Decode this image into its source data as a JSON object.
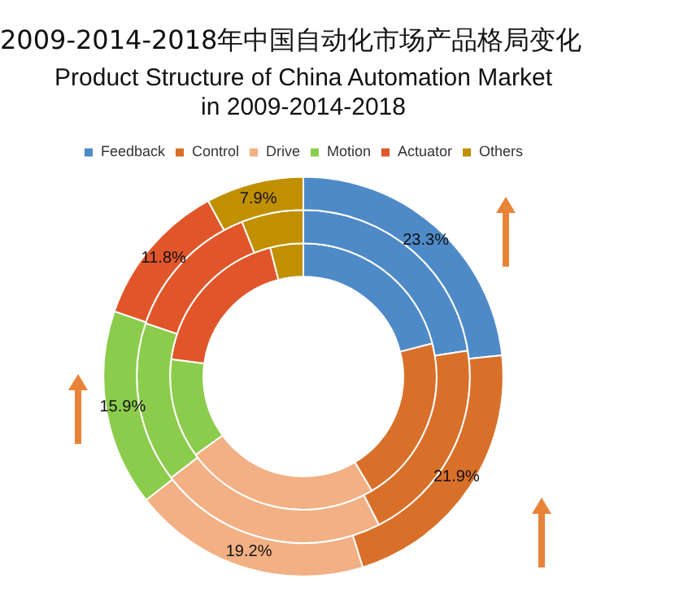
{
  "chart_data": {
    "type": "donut",
    "title": "2009-2014-2018年中国自动化市场产品格局变化",
    "subtitle": "Product Structure of China Automation Market\nin 2009-2014-2018",
    "categories": [
      "Feedback",
      "Control",
      "Drive",
      "Motion",
      "Actuator",
      "Others"
    ],
    "colors": [
      "#4e8ac8",
      "#d9702a",
      "#f2b084",
      "#8ccc4c",
      "#e0562a",
      "#c09000"
    ],
    "legend": "top",
    "series": [
      {
        "values": [
          23.3,
          21.9,
          19.2,
          15.9,
          11.8,
          7.9
        ],
        "value_labels": [
          "23.3%",
          "21.9%",
          "19.2%",
          "15.9%",
          "11.8%",
          "7.9%"
        ]
      },
      {
        "values": [
          22.5,
          20,
          22.1,
          15.6,
          13.8,
          6
        ]
      },
      {
        "values": [
          21,
          20.4,
          23.6,
          12.1,
          18.9,
          4
        ]
      }
    ]
  }
}
